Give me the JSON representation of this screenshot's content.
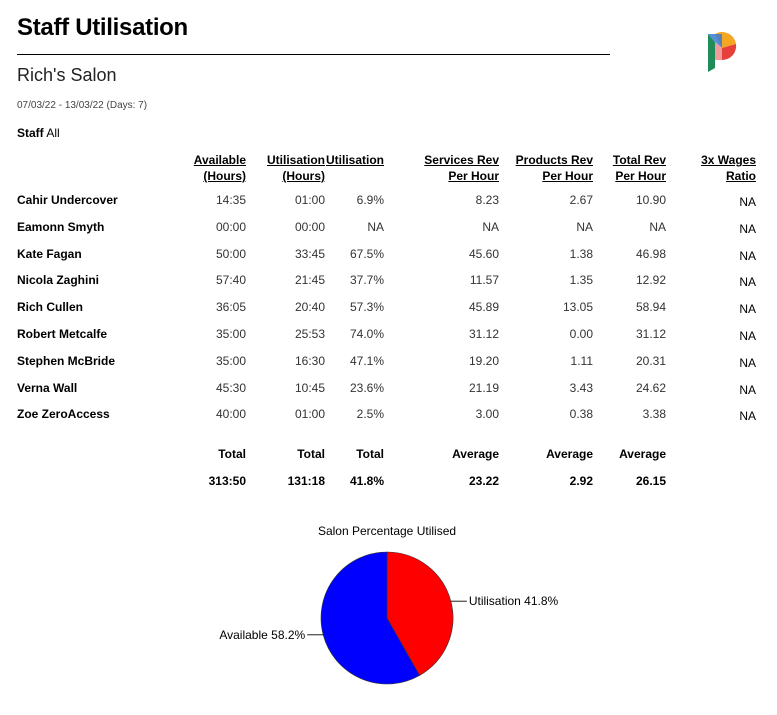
{
  "report": {
    "title": "Staff Utilisation",
    "salon": "Rich's Salon",
    "date_range": "07/03/22 - 13/03/22 (Days: 7)",
    "staff_label": "Staff",
    "staff_value": "All"
  },
  "logo": {
    "icon": "brand-p-logo",
    "colors": [
      "#e6403b",
      "#f5a623",
      "#1f8c5a",
      "#3a7bd5"
    ]
  },
  "columns": [
    {
      "key": "available",
      "line1": "Available",
      "line2": "(Hours)"
    },
    {
      "key": "utilisation_hours",
      "line1": "Utilisation",
      "line2": "(Hours)"
    },
    {
      "key": "utilisation",
      "line1": "Utilisation",
      "line2": ""
    },
    {
      "key": "services_rev",
      "line1": "Services Rev",
      "line2": "Per Hour"
    },
    {
      "key": "products_rev",
      "line1": "Products Rev",
      "line2": "Per Hour"
    },
    {
      "key": "total_rev",
      "line1": "Total Rev",
      "line2": "Per Hour"
    },
    {
      "key": "wages_ratio",
      "line1": "3x Wages",
      "line2": "Ratio"
    }
  ],
  "rows": [
    {
      "name": "Cahir Undercover",
      "available": "14:35",
      "utilisation_hours": "01:00",
      "utilisation": "6.9%",
      "services_rev": "8.23",
      "products_rev": "2.67",
      "total_rev": "10.90",
      "wages_ratio": "NA"
    },
    {
      "name": "Eamonn Smyth",
      "available": "00:00",
      "utilisation_hours": "00:00",
      "utilisation": "NA",
      "services_rev": "NA",
      "products_rev": "NA",
      "total_rev": "NA",
      "wages_ratio": "NA"
    },
    {
      "name": "Kate Fagan",
      "available": "50:00",
      "utilisation_hours": "33:45",
      "utilisation": "67.5%",
      "services_rev": "45.60",
      "products_rev": "1.38",
      "total_rev": "46.98",
      "wages_ratio": "NA"
    },
    {
      "name": "Nicola Zaghini",
      "available": "57:40",
      "utilisation_hours": "21:45",
      "utilisation": "37.7%",
      "services_rev": "11.57",
      "products_rev": "1.35",
      "total_rev": "12.92",
      "wages_ratio": "NA"
    },
    {
      "name": "Rich Cullen",
      "available": "36:05",
      "utilisation_hours": "20:40",
      "utilisation": "57.3%",
      "services_rev": "45.89",
      "products_rev": "13.05",
      "total_rev": "58.94",
      "wages_ratio": "NA"
    },
    {
      "name": "Robert Metcalfe",
      "available": "35:00",
      "utilisation_hours": "25:53",
      "utilisation": "74.0%",
      "services_rev": "31.12",
      "products_rev": "0.00",
      "total_rev": "31.12",
      "wages_ratio": "NA"
    },
    {
      "name": "Stephen McBride",
      "available": "35:00",
      "utilisation_hours": "16:30",
      "utilisation": "47.1%",
      "services_rev": "19.20",
      "products_rev": "1.11",
      "total_rev": "20.31",
      "wages_ratio": "NA"
    },
    {
      "name": "Verna Wall",
      "available": "45:30",
      "utilisation_hours": "10:45",
      "utilisation": "23.6%",
      "services_rev": "21.19",
      "products_rev": "3.43",
      "total_rev": "24.62",
      "wages_ratio": "NA"
    },
    {
      "name": "Zoe ZeroAccess",
      "available": "40:00",
      "utilisation_hours": "01:00",
      "utilisation": "2.5%",
      "services_rev": "3.00",
      "products_rev": "0.38",
      "total_rev": "3.38",
      "wages_ratio": "NA"
    }
  ],
  "totals": {
    "labels": {
      "available": "Total",
      "utilisation_hours": "Total",
      "utilisation": "Total",
      "services_rev": "Average",
      "products_rev": "Average",
      "total_rev": "Average"
    },
    "values": {
      "available": "313:50",
      "utilisation_hours": "131:18",
      "utilisation": "41.8%",
      "services_rev": "23.22",
      "products_rev": "2.92",
      "total_rev": "26.15"
    }
  },
  "chart_data": {
    "type": "pie",
    "title": "Salon Percentage Utilised",
    "slices": [
      {
        "label": "Utilisation 41.8%",
        "value": 41.8,
        "color": "#ff0000"
      },
      {
        "label": "Available 58.2%",
        "value": 58.2,
        "color": "#0000ff"
      }
    ]
  }
}
